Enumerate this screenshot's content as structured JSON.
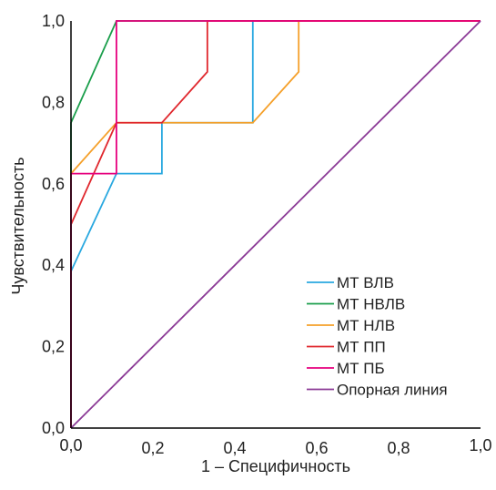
{
  "chart_data": {
    "type": "line",
    "title": "",
    "xlabel": "1 – Специфичность",
    "ylabel": "Чувствительность",
    "xlim": [
      0,
      1
    ],
    "ylim": [
      0,
      1
    ],
    "x_ticks": [
      "0,0",
      "0,2",
      "0,4",
      "0,6",
      "0,8",
      "1,0"
    ],
    "y_ticks": [
      "0,0",
      "0,2",
      "0,4",
      "0,6",
      "0,8",
      "1,0"
    ],
    "grid": false,
    "legend_position": "bottom-right",
    "series": [
      {
        "name": "МТ ВЛВ",
        "color": "#29a8e0",
        "points": [
          [
            0,
            0
          ],
          [
            0,
            0.385
          ],
          [
            0.111,
            0.625
          ],
          [
            0.222,
            0.625
          ],
          [
            0.222,
            0.75
          ],
          [
            0.444,
            0.75
          ],
          [
            0.444,
            1
          ],
          [
            1,
            1
          ]
        ]
      },
      {
        "name": "МТ НВЛВ",
        "color": "#1a9e4b",
        "points": [
          [
            0,
            0
          ],
          [
            0,
            0.75
          ],
          [
            0.111,
            1
          ],
          [
            1,
            1
          ]
        ]
      },
      {
        "name": "МТ НЛВ",
        "color": "#f5a02a",
        "points": [
          [
            0,
            0
          ],
          [
            0,
            0.625
          ],
          [
            0.111,
            0.75
          ],
          [
            0.444,
            0.75
          ],
          [
            0.556,
            0.875
          ],
          [
            0.556,
            1
          ],
          [
            1,
            1
          ]
        ]
      },
      {
        "name": "МТ ПП",
        "color": "#e0282e",
        "points": [
          [
            0,
            0
          ],
          [
            0,
            0.5
          ],
          [
            0.111,
            0.75
          ],
          [
            0.222,
            0.75
          ],
          [
            0.333,
            0.875
          ],
          [
            0.333,
            1
          ],
          [
            1,
            1
          ]
        ]
      },
      {
        "name": "МТ ПБ",
        "color": "#e6007e",
        "points": [
          [
            0,
            0
          ],
          [
            0,
            0.625
          ],
          [
            0.111,
            0.625
          ],
          [
            0.111,
            1
          ],
          [
            1,
            1
          ]
        ]
      },
      {
        "name": "Опорная линия",
        "color": "#8b3a96",
        "points": [
          [
            0,
            0
          ],
          [
            1,
            1
          ]
        ]
      }
    ]
  }
}
